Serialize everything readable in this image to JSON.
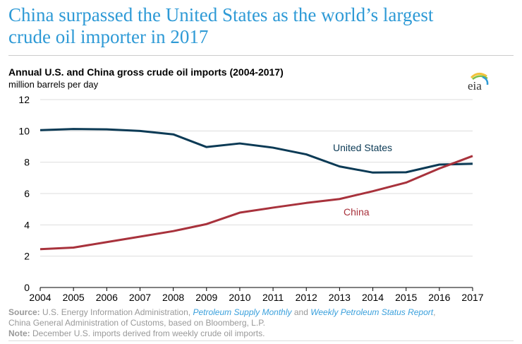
{
  "title_line1": "China surpassed the United States as the world’s largest",
  "title_line2": "crude oil importer in 2017",
  "logo_text": "eia",
  "chart_data": {
    "type": "line",
    "title": "Annual U.S. and China gross crude oil imports (2004-2017)",
    "ylabel": "million barrels per day",
    "xlabel": "",
    "x": [
      2004,
      2005,
      2006,
      2007,
      2008,
      2009,
      2010,
      2011,
      2012,
      2013,
      2014,
      2015,
      2016,
      2017
    ],
    "ylim": [
      0,
      12
    ],
    "yticks": [
      0,
      2,
      4,
      6,
      8,
      10,
      12
    ],
    "grid": "horizontal",
    "series": [
      {
        "name": "United States",
        "color": "#0b3a55",
        "values": [
          10.05,
          10.12,
          10.1,
          10.0,
          9.78,
          8.97,
          9.2,
          8.93,
          8.5,
          7.73,
          7.34,
          7.36,
          7.85,
          7.9
        ]
      },
      {
        "name": "China",
        "color": "#a8323c",
        "values": [
          2.45,
          2.55,
          2.9,
          3.25,
          3.6,
          4.05,
          4.78,
          5.1,
          5.4,
          5.65,
          6.15,
          6.7,
          7.6,
          8.4
        ]
      }
    ]
  },
  "footer": {
    "source_label": "Source:",
    "source_text1": " U.S. Energy Information Administration, ",
    "source_link1": "Petroleum Supply Monthly",
    "source_and": " and ",
    "source_link2": "Weekly Petroleum Status Report",
    "source_text2": ",",
    "source_line2": "China General Administration of Customs, based on Bloomberg, L.P.",
    "note_label": "Note:",
    "note_text": " December U.S. imports derived from weekly crude oil imports."
  }
}
